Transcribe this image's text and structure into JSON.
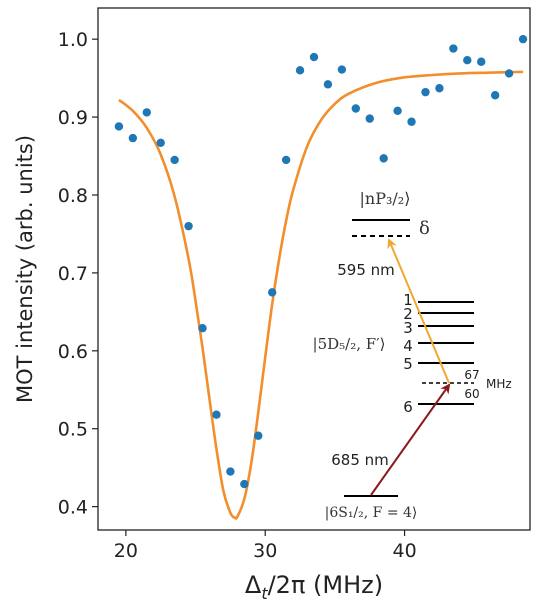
{
  "chart_data": {
    "type": "scatter",
    "xlabel_main": "Δ",
    "xlabel_sub": "t",
    "xlabel_rest": "/2π (MHz)",
    "ylabel": "MOT intensity (arb. units)",
    "xlim": [
      18,
      49
    ],
    "ylim": [
      0.37,
      1.04
    ],
    "xticks": [
      20,
      30,
      40
    ],
    "yticks": [
      0.4,
      0.5,
      0.6,
      0.7,
      0.8,
      0.9,
      1.0
    ],
    "xtick_labels": [
      "20",
      "30",
      "40"
    ],
    "ytick_labels": [
      "0.4",
      "0.5",
      "0.6",
      "0.7",
      "0.8",
      "0.9",
      "1.0"
    ],
    "grid": false,
    "colors": {
      "points": "#1f77b4",
      "fit": "#f28e2b",
      "arrow_685": "#8b1a1a",
      "arrow_595": "#f0a830",
      "level": "#000000"
    },
    "series": [
      {
        "kind": "points",
        "x": [
          19.5,
          20.5,
          21.5,
          22.5,
          23.5,
          24.5,
          25.5,
          26.5,
          27.5,
          28.5,
          29.5,
          30.5,
          31.5,
          32.5,
          33.5,
          34.5,
          35.5,
          36.5,
          37.5,
          38.5,
          39.5,
          40.5,
          41.5,
          42.5,
          43.5,
          44.5,
          45.5,
          46.5,
          47.5,
          48.5
        ],
        "y": [
          0.888,
          0.873,
          0.906,
          0.867,
          0.845,
          0.76,
          0.629,
          0.518,
          0.445,
          0.429,
          0.491,
          0.675,
          0.845,
          0.96,
          0.977,
          0.942,
          0.961,
          0.911,
          0.898,
          0.847,
          0.908,
          0.894,
          0.932,
          0.937,
          0.988,
          0.973,
          0.971,
          0.928,
          0.956,
          1.0
        ]
      },
      {
        "kind": "fit",
        "x": [
          19.5,
          20.5,
          21.5,
          22.5,
          23.5,
          24.5,
          25.0,
          25.5,
          26.0,
          26.5,
          27.0,
          27.5,
          27.8,
          28.0,
          28.5,
          29.0,
          29.5,
          30.0,
          30.5,
          31.0,
          31.5,
          32.0,
          33.0,
          34.0,
          35.0,
          36.0,
          38.0,
          40.0,
          42.0,
          44.0,
          46.0,
          48.5
        ],
        "y": [
          0.922,
          0.908,
          0.886,
          0.852,
          0.798,
          0.718,
          0.664,
          0.604,
          0.538,
          0.474,
          0.42,
          0.392,
          0.386,
          0.387,
          0.41,
          0.456,
          0.521,
          0.592,
          0.66,
          0.718,
          0.767,
          0.806,
          0.862,
          0.896,
          0.917,
          0.93,
          0.944,
          0.951,
          0.954,
          0.956,
          0.957,
          0.958
        ]
      }
    ],
    "inset": {
      "ground_label": "|6S₁/₂, F = 4⟩",
      "mid_label": "|5D₅/₂, F′⟩",
      "top_label": "|nP₃/₂⟩",
      "delta_label": "δ",
      "nm_685": "685 nm",
      "nm_595": "595 nm",
      "f_levels": [
        "1",
        "2",
        "3",
        "4",
        "5",
        "6"
      ],
      "spacing_67": "67",
      "spacing_60": "60",
      "spacing_unit": "MHz"
    }
  }
}
